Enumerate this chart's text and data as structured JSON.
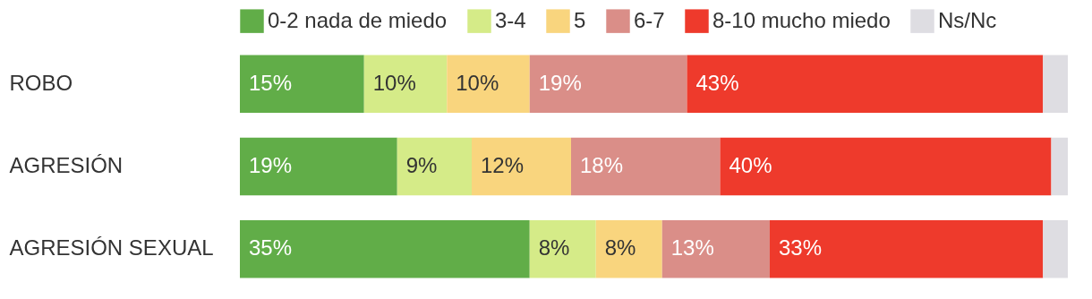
{
  "chart_data": {
    "type": "bar",
    "orientation": "horizontal",
    "stacked": true,
    "legend": "top",
    "tick_labels": "y",
    "xlim": [
      0,
      100
    ],
    "categories": [
      "ROBO",
      "AGRESIÓN",
      "AGRESIÓN SEXUAL"
    ],
    "series": [
      {
        "name": "0-2 nada de miedo",
        "color": "#61ad48",
        "values": [
          15,
          19,
          35
        ],
        "value_labels": [
          "15%",
          "19%",
          "35%"
        ]
      },
      {
        "name": "3-4",
        "color": "#d5eb88",
        "values": [
          10,
          9,
          8
        ],
        "value_labels": [
          "10%",
          "9%",
          "8%"
        ]
      },
      {
        "name": "5",
        "color": "#f9d57e",
        "values": [
          10,
          12,
          8
        ],
        "value_labels": [
          "10%",
          "12%",
          "8%"
        ]
      },
      {
        "name": "6-7",
        "color": "#da8e88",
        "values": [
          19,
          18,
          13
        ],
        "value_labels": [
          "19%",
          "18%",
          "13%"
        ]
      },
      {
        "name": "8-10 mucho miedo",
        "color": "#ee3a2c",
        "values": [
          43,
          40,
          33
        ],
        "value_labels": [
          "43%",
          "40%",
          "33%"
        ]
      },
      {
        "name": "Ns/Nc",
        "color": "#dedde2",
        "values": [
          3,
          2,
          3
        ],
        "value_labels": [
          null,
          null,
          null
        ]
      }
    ]
  }
}
